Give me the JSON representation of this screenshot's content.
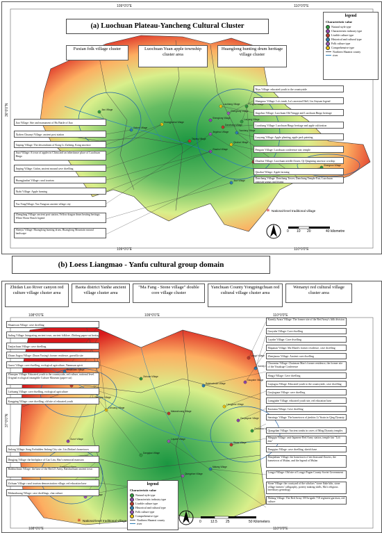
{
  "panel_a": {
    "title": "(a) Luochuan Plateau-Yancheng Cultural Cluster",
    "coords": {
      "top_lon": [
        "109°0'0\"E",
        "110°0'0\"E"
      ],
      "left_lat": [
        "36°0'0\"N"
      ],
      "bottom_lon": [
        "109°0'0\"E",
        "110°0'0\"E"
      ]
    },
    "clusters": [
      "Fuxian folk village cluster",
      "Luochuan Yuan apple township cluster area",
      "Huanglong hunting drum heritage village cluster"
    ],
    "left_labels": [
      "Jiao Village: Site and monument of Hu Battle of Jiao",
      "Xizhen Chuanyi Village: ancient post station",
      "Taiping Village: The descendants of Kong Li Zizheng, Kong ancestor",
      "Jiuzi Village: A town of apples in China and an inheritance place of Luochuan Bingo",
      "Jinping Village: Gufan, ancient mound cave dwelling",
      "Huangjiazhai Village: rural tourism",
      "Nizhi Village: Apple farming",
      "Yao YangVillage: Yao Yangcun ancient village city",
      "Zhengfang Village: ancient post station, Yellow dragon drum beating heritage, White Horse Beach legend",
      "Shenyu Village: Huanglong hunting drum, Huanglong Mountain natural landscape"
    ],
    "right_labels": [
      "Niyu Village: educated youth to the countryside",
      "Shangnuo Village: Lu's tomb, Lu's ancestral Hall, Liu Jinyuan legend",
      "Jingzhuo Village: Luochuan Old Yangge and Luochuan Bingo heritage",
      "Luozhang Village: Luochuan Bingo heritage and apple cultivation",
      "Luoyang Village: Apple planting, apple park painting",
      "Fengxin Village: Luochuan conference site, temple",
      "Zhaohui Village: Luochuan needle flower, Qi Qingming ancestor worship",
      "Qinzhai Village: Apple farming",
      "Danchang Village: Danchang Tower, Danchang Temple Fair, Luochuan opposite gongs and drums"
    ],
    "map_village_names": [
      "Jiao Village",
      "Xizhen Village",
      "Huangjiazhai Village",
      "Shenglong Village",
      "Danchang Village",
      "Zhengfang Village",
      "Yaoxiang Village",
      "Luoyang Village",
      "Qinzhai Village",
      "Zhaohui Village",
      "Nizhi Village",
      "Jiuzi Village",
      "Shangnuo Village",
      "Jingzhuo Village",
      "Luozhang Village",
      "Fengxin Village",
      "Taiping Village"
    ],
    "legend": {
      "title": "legend",
      "subtitle": "Characteristic value",
      "items": [
        {
          "label": "Natural style type",
          "color": "#2e9e3f"
        },
        {
          "label": "Characteristic industry type",
          "color": "#8e44ad"
        },
        {
          "label": "Livable culture type",
          "color": "#c0392b"
        },
        {
          "label": "Historical and cultural type",
          "color": "#2c7fb8"
        },
        {
          "label": "Folk culture type",
          "color": "#9b59b6"
        },
        {
          "label": "Comprehensive type",
          "color": "#f1c40f"
        }
      ],
      "lines": [
        {
          "label": "Northern Shaanxi county",
          "color": "#555"
        },
        {
          "label": "river",
          "color": "#2c7fb8"
        }
      ]
    },
    "national_note": "National-level traditional village",
    "scale": [
      "0",
      "10",
      "20",
      "40 kilometre"
    ]
  },
  "panel_b_header": "(b) Loess Liangmao - Yanfu cultural group domain",
  "panel_b": {
    "clusters": [
      "Zhidan Luo River canyon red culture village cluster area",
      "Baota district Yanhe ancient village cluster area",
      "\"Ma Fang - Stone village\" double core village cluster",
      "Yanchuan County Yongpingchuan red cultural village cluster area",
      "Wenanyi red cultural village cluster area"
    ],
    "coords": {
      "top_lon": [
        "108°0'0\"E",
        "109°0'0\"E",
        "110°0'0\"E"
      ],
      "left_lat": [
        "37°0'0\"N"
      ],
      "bottom_lon": [
        "108°0'0\"E",
        "109°0'0\"E",
        "110°0'0\"E"
      ]
    },
    "left_labels": [
      "Shuanwan Village: cave dwelling",
      "Jiuling Village: Integrating ancient town, ancient folklore, Zhidang paper-cut heritage",
      "Tanjiachuan Village: cave dwelling",
      "Zhuan Jiagou Village: Zhuan Yuxing's former residence, guerrilla site",
      "Gunvi Village: cave dwelling, ecological agriculture, Nanmuan spirit",
      "Zhaoqiao Village: Educated youth to the countryside, red culture, national level. Original ecological intangible Culture Museum (paper-cut)",
      "Lizhuang Village: cave dwelling, ecological agriculture",
      "Kangping Village: cave dwelling, old site of educated youth",
      "Jinlong Village: Song Forbidden Jinlong City site, Liu Zhidan's hometown",
      "Dingjing Village: the birthplace of Cao Liru, Hao's memorial mansion",
      "Baishuchuan Village: the base of the Red 25 Army, Baishuchuan ancient town",
      "Zichuan Village: rural tourism demonstration village, red education base",
      "Malanzhuang Village: cave dwellings, clan culture"
    ],
    "right_labels": [
      "Karmly Avara Village: The former site of the Red Army's fifth division",
      "Gaoyahe Village: Cave dwelling",
      "Luyahe Village: Cave dwelling",
      "Mapanan Village: Ma Manli's former residence, cave dwelling",
      "Zhenjiazuo Village: Ancient cave dwelling",
      "Chaomiao Village: Chairman Mao's former residence, the former site of the Yasakoge Conference",
      "Shngji Village: Cave dwelling",
      "Liujiagou Village: Educated youth to the countryside, cave dwelling",
      "Gaojiagaun Village: cave dwelling",
      "Liangjiahe Village: educated youth site, red education base",
      "Kaotamu Village: Cave dwelling",
      "Sanxingo Village: The hometown of jinshiss Li Yuxin in Qing Dynasty",
      "Qiangzhan Village: Ancient tombs in caves of Ming Dynasty temples",
      "Mingqiu Village: anti-Japanese Red Army station, temple fair \"Lift dou\"",
      "Dangqiao Village: cave dwelling, sketch base",
      "Manjiabian Village: the hometown of ten thousand flowers, the hometown of Mulan, and the legend of Mulan",
      "Longyi Village: Old site of Longyi Fugen County Soviet Government",
      "Stone Village: the courtyard of the scholars \"stone flake kiln, stone village farmers' calligraphy, pottery making skills, Mu's religious hereditary genealogy",
      "Malang Village: The Red Army 359 brigade 718 regiment garrison, red culture"
    ],
    "map_village_names": [
      "Shuanwan Village",
      "Jiuling Village",
      "Zhaoqiao Village",
      "Lizhuang Village",
      "Gunvi Village",
      "Kangping Village",
      "Jinlong Village",
      "Dingjing Village",
      "Zichuan Village",
      "Malanzhuang Village",
      "Baishuchuan Village",
      "Liangjiahe Village",
      "Gaojiagaun Village",
      "Chaomiao Village",
      "Stone Village",
      "Malang Village",
      "Qiangzhan Village",
      "Mingqiu Village",
      "Dangqiao Village",
      "Longyi Village",
      "Karmly Village",
      "Gaoyahe Village",
      "Luyahe Village"
    ],
    "legend": {
      "title": "legend",
      "subtitle": "Characteristic value",
      "items": [
        {
          "label": "Natural style type",
          "color": "#2e9e3f"
        },
        {
          "label": "Characteristic industry type",
          "color": "#8e44ad"
        },
        {
          "label": "Livable culture type",
          "color": "#c0392b"
        },
        {
          "label": "Historical and cultural type",
          "color": "#2c7fb8"
        },
        {
          "label": "Folk culture type",
          "color": "#9b59b6"
        },
        {
          "label": "Comprehensive type",
          "color": "#f1c40f"
        }
      ],
      "lines": [
        {
          "label": "Northern Shaanxi county",
          "color": "#555"
        },
        {
          "label": "river",
          "color": "#2c7fb8"
        }
      ]
    },
    "national_note": "National-level traditional village",
    "scale": [
      "0",
      "12.5",
      "25",
      "50 Kilometers"
    ]
  },
  "colors": {
    "elev_low": "#1a9641",
    "elev_mid": "#ffff66",
    "elev_high": "#d7191c",
    "river": "#2c7fb8"
  }
}
